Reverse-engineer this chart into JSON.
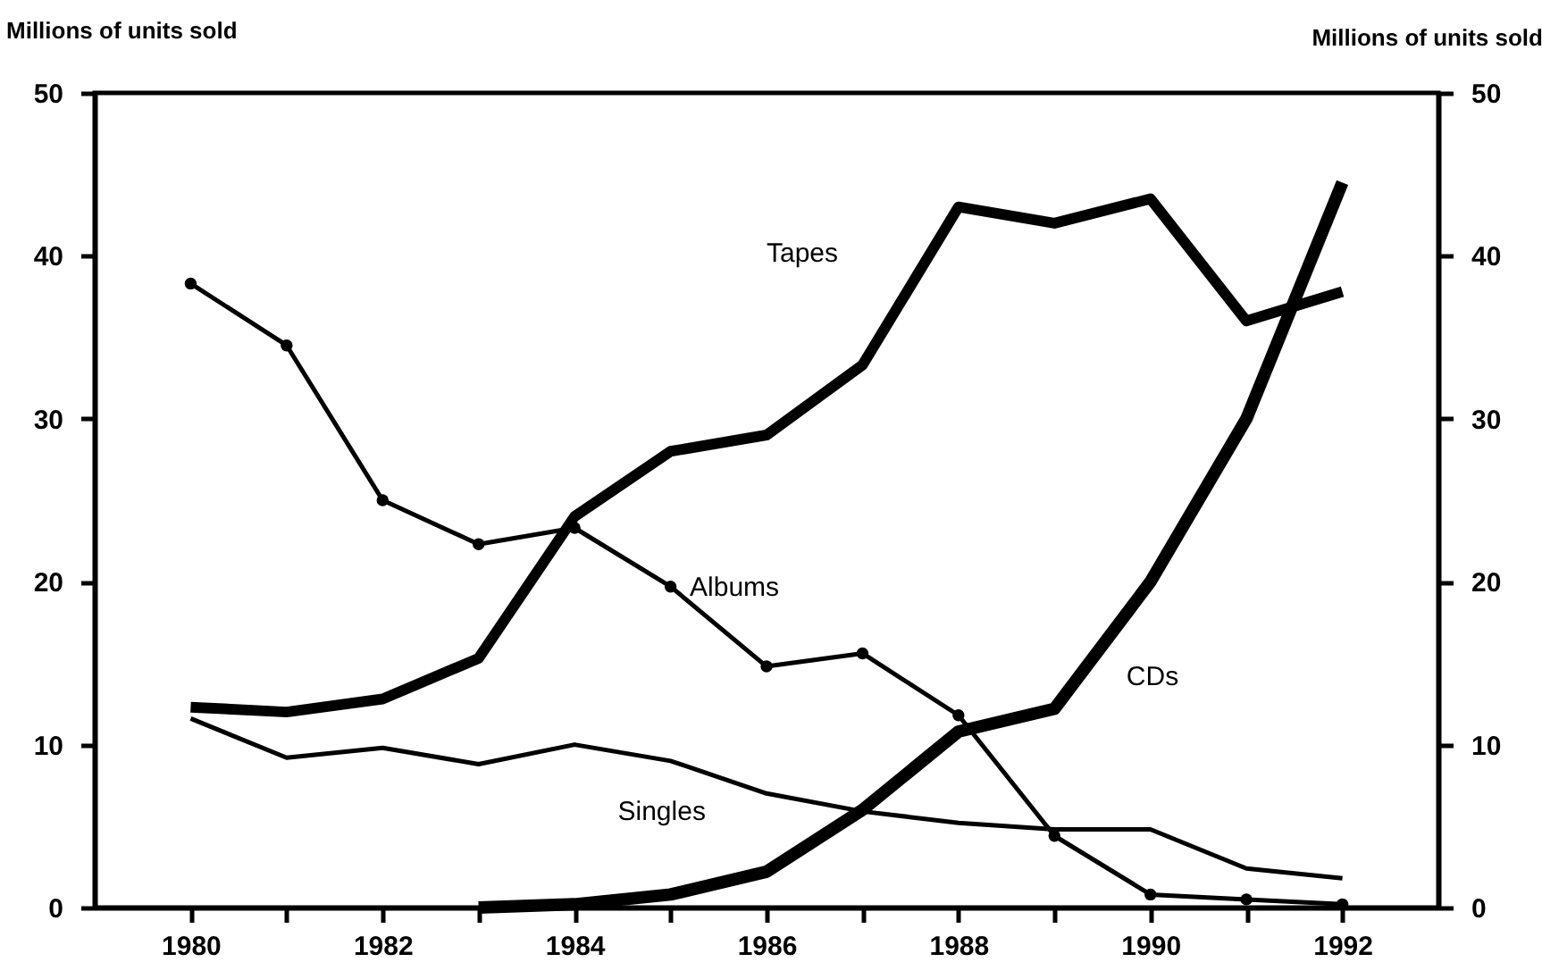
{
  "chart_data": {
    "type": "line",
    "ylabel": "Millions of units sold",
    "y2label": "Millions of units sold",
    "x": [
      1980,
      1981,
      1982,
      1983,
      1984,
      1985,
      1986,
      1987,
      1988,
      1989,
      1990,
      1991,
      1992
    ],
    "series": [
      {
        "name": "Tapes",
        "color": "#000000",
        "values": [
          12.3,
          12,
          12.8,
          15.3,
          24,
          28,
          29,
          33.3,
          43,
          42,
          43.5,
          36,
          37.8
        ]
      },
      {
        "name": "Albums",
        "color": "#000000",
        "marker": "circle",
        "values": [
          38.3,
          34.5,
          25,
          22.3,
          23.3,
          19.7,
          14.8,
          15.6,
          11.8,
          4.4,
          0.8,
          0.5,
          0.2
        ]
      },
      {
        "name": "Singles",
        "color": "#000000",
        "values": [
          11.6,
          9.2,
          9.8,
          8.8,
          10,
          9,
          7,
          5.9,
          5.2,
          4.8,
          4.8,
          2.4,
          1.8
        ]
      },
      {
        "name": "CDs",
        "color": "#000000",
        "x": [
          1983,
          1984,
          1985,
          1986,
          1987,
          1988,
          1989,
          1990,
          1991,
          1992
        ],
        "values": [
          0,
          0.2,
          0.8,
          2.2,
          6,
          10.8,
          12.2,
          20,
          30,
          44.5
        ]
      }
    ],
    "xlim": [
      1979,
      1993
    ],
    "xticks": [
      1980,
      {
        "value": 1981,
        "label": null
      },
      1982,
      {
        "value": 1983,
        "label": null
      },
      1984,
      {
        "value": 1985,
        "label": null
      },
      1986,
      {
        "value": 1987,
        "label": null
      },
      1988,
      {
        "value": 1989,
        "label": null
      },
      1990,
      {
        "value": 1991,
        "label": null
      },
      1992
    ],
    "ylim": [
      0,
      50
    ],
    "yticks": [
      0,
      10,
      20,
      30,
      40,
      50
    ],
    "y2lim": [
      0,
      50
    ],
    "y2ticks": [
      0,
      10,
      20,
      30,
      40,
      50
    ],
    "grid": false
  }
}
